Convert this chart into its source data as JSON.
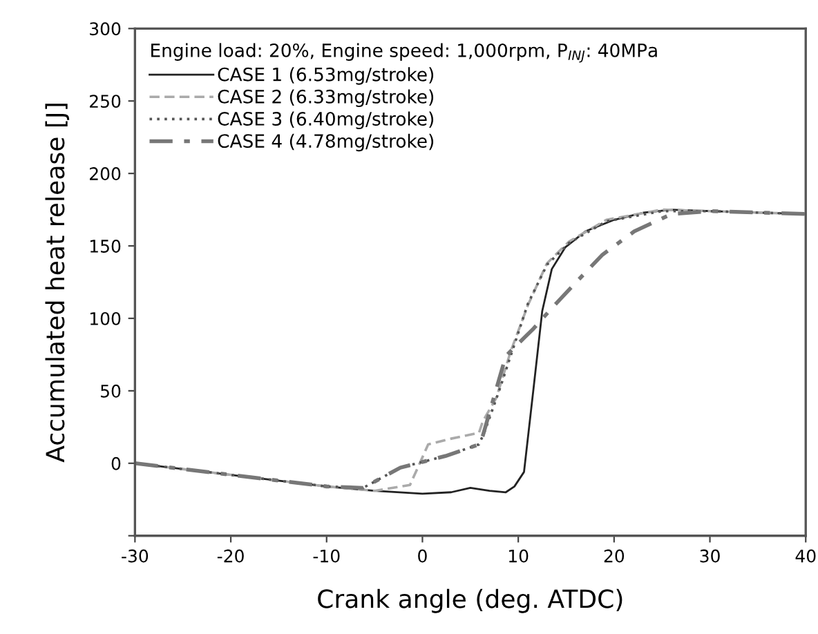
{
  "chart_data": {
    "type": "line",
    "xlabel": "Crank angle (deg. ATDC)",
    "ylabel": "Accumulated heat release [J]",
    "legend_title": "Engine load: 20%, Engine speed: 1,000rpm, P$_{INJ}$: 40MPa",
    "legend": "top left",
    "grid": false,
    "marker": "none",
    "xlim": [
      -30,
      40
    ],
    "xticks": [
      -30,
      -20,
      -10,
      0,
      10,
      20,
      30,
      40
    ],
    "ylim": [
      -50,
      300
    ],
    "yticks": [
      {
        "value": -50,
        "label": null
      },
      0,
      50,
      100,
      150,
      200,
      250,
      300
    ],
    "series": [
      {
        "name": "CASE 1 (6.53mg/stroke)",
        "color": "#222222",
        "line_style": "solid",
        "x": [
          -30,
          -20,
          -10,
          -5,
          0,
          3,
          5,
          7,
          8.7,
          9.6,
          10.6,
          11.6,
          12.5,
          13.5,
          14.9,
          17,
          20,
          23.1,
          26,
          30,
          35,
          40
        ],
        "values": [
          0,
          -8,
          -16,
          -19,
          -21,
          -20,
          -17,
          -19,
          -20,
          -16,
          -6,
          52,
          105,
          134,
          149,
          160,
          168,
          173,
          175,
          174,
          173,
          172
        ]
      },
      {
        "name": "CASE 2 (6.33mg/stroke)",
        "color": "#aaaaaa",
        "line_style": "dashed",
        "x": [
          -30,
          -20,
          -10,
          -5,
          -1.3,
          0.6,
          3,
          5.9,
          6.3,
          7.7,
          9.2,
          11,
          13,
          15.3,
          19.2,
          25,
          30,
          35,
          40
        ],
        "values": [
          0,
          -8,
          -16,
          -19,
          -15,
          13,
          17,
          21,
          29,
          45,
          77,
          109,
          138,
          153,
          168,
          175,
          174,
          173,
          172
        ]
      },
      {
        "name": "CASE 3 (6.40mg/stroke)",
        "color": "#555555",
        "line_style": "dotted",
        "x": [
          -30,
          -20,
          -10,
          -6.2,
          -2.3,
          2.4,
          5.9,
          6.5,
          8,
          9.5,
          11,
          13,
          15.3,
          19.2,
          25,
          30,
          35,
          40
        ],
        "values": [
          0,
          -8,
          -16,
          -17,
          -3,
          5,
          13,
          22,
          50,
          80,
          110,
          137,
          152,
          167,
          174,
          174,
          173,
          172
        ]
      },
      {
        "name": "CASE 4 (4.78mg/stroke)",
        "color": "#777777",
        "line_style": "dashdot",
        "x": [
          -30,
          -20,
          -10,
          -6.2,
          -2.3,
          2.4,
          5.9,
          6.3,
          8.7,
          11.6,
          13.5,
          15.9,
          18.8,
          22.1,
          26,
          30,
          35,
          40
        ],
        "values": [
          0,
          -8,
          -16,
          -17,
          -3,
          5,
          13,
          19,
          74,
          93,
          107,
          124,
          144,
          160,
          172,
          174,
          173,
          172
        ]
      }
    ]
  }
}
